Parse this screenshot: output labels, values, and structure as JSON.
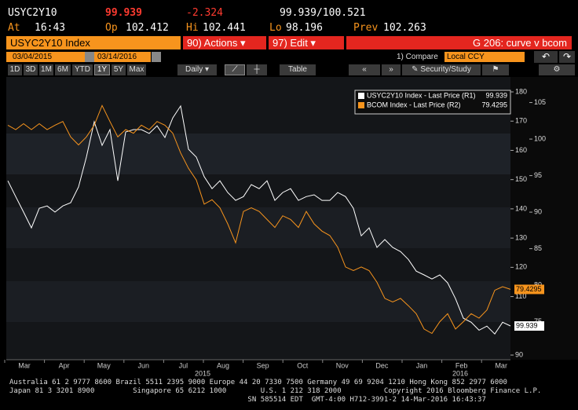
{
  "quote": {
    "ticker": "USYC2Y10",
    "last": 99.939,
    "change": -2.324,
    "range": "99.939/100.521",
    "time_label": "At",
    "time": "16:43",
    "open_label": "Op",
    "open": 102.412,
    "high_label": "Hi",
    "high": 102.441,
    "low_label": "Lo",
    "low": 98.196,
    "prev_label": "Prev",
    "prev": 102.263
  },
  "toolbar": {
    "security": "USYC2Y10 Index",
    "actions": "90) Actions",
    "edit": "97) Edit",
    "page": "G 206: curve v bcom"
  },
  "dates": {
    "start": "03/04/2015",
    "end": "03/14/2016",
    "compare": "1) Compare",
    "currency": "Local CCY"
  },
  "controls": {
    "periods": [
      "1D",
      "3D",
      "1M",
      "6M",
      "YTD",
      "1Y",
      "5Y",
      "Max"
    ],
    "frequency": "Daily",
    "table": "Table",
    "study": "Security/Study"
  },
  "chart_data": {
    "type": "line",
    "series": [
      {
        "name": "USYC2Y10 Index - Last Price (R1)",
        "color": "#ffffff",
        "axis": "y",
        "values": [
          149.6,
          144.2,
          138.9,
          133.5,
          140.2,
          141.0,
          138.9,
          141.0,
          142.1,
          147.5,
          157.7,
          169.8,
          161.7,
          167.1,
          149.6,
          166.3,
          167.1,
          167.1,
          165.8,
          168.4,
          164.4,
          171.1,
          175.2,
          160.4,
          157.7,
          151.0,
          146.9,
          149.6,
          145.6,
          142.9,
          144.2,
          148.3,
          146.9,
          149.6,
          142.9,
          145.6,
          146.9,
          142.9,
          144.2,
          144.8,
          142.9,
          142.9,
          145.6,
          144.2,
          140.2,
          130.8,
          133.5,
          126.8,
          129.5,
          126.8,
          125.4,
          122.7,
          118.7,
          117.4,
          116.0,
          117.4,
          114.7,
          109.3,
          102.6,
          101.2,
          98.5,
          99.9,
          97.2,
          101.2,
          99.939
        ]
      },
      {
        "name": "BCOM Index - Last Price (R2)",
        "color": "#f7941d",
        "axis": "y2",
        "values": [
          101.9,
          101.3,
          102.1,
          101.3,
          102.1,
          101.3,
          101.9,
          102.4,
          100.3,
          99.2,
          100.3,
          101.9,
          104.6,
          102.4,
          100.3,
          101.3,
          100.8,
          101.9,
          101.3,
          102.4,
          101.9,
          100.8,
          98.1,
          96.0,
          94.4,
          91.1,
          91.7,
          90.6,
          88.4,
          85.8,
          90.1,
          90.6,
          90.1,
          89.0,
          87.9,
          89.5,
          89.0,
          87.9,
          90.1,
          88.4,
          87.4,
          86.8,
          85.2,
          82.5,
          82.0,
          82.5,
          82.0,
          80.4,
          78.2,
          77.7,
          78.2,
          77.2,
          76.1,
          74.0,
          73.4,
          75.0,
          76.1,
          74.0,
          75.0,
          76.1,
          75.5,
          76.6,
          79.3,
          79.8,
          79.4295
        ]
      }
    ],
    "ylim": [
      88.4,
      185.1
    ],
    "yticks": [
      90,
      110,
      120,
      130,
      140,
      150,
      160,
      170,
      180
    ],
    "y2lim": [
      69.8,
      108.5
    ],
    "y2ticks": [
      75,
      80,
      85,
      90,
      95,
      100,
      105
    ],
    "xtick_labels": [
      "Mar",
      "Apr",
      "May",
      "Jun",
      "Jul",
      "Aug",
      "Sep",
      "Oct",
      "Nov",
      "Dec",
      "Jan",
      "Feb",
      "Mar"
    ],
    "year_labels": [
      "2015",
      "2016"
    ]
  },
  "footer": {
    "lines": [
      "Australia 61 2 9777 8600 Brazil 5511 2395 9000 Europe 44 20 7330 7500 Germany 49 69 9204 1210 Hong Kong 852 2977 6000",
      "Japan 81 3 3201 8900         Singapore 65 6212 1000        U.S. 1 212 318 2000          Copyright 2016 Bloomberg Finance L.P.",
      "                                                        SN 585514 EDT  GMT-4:00 H712-3991-2 14-Mar-2016 16:43:37"
    ]
  }
}
